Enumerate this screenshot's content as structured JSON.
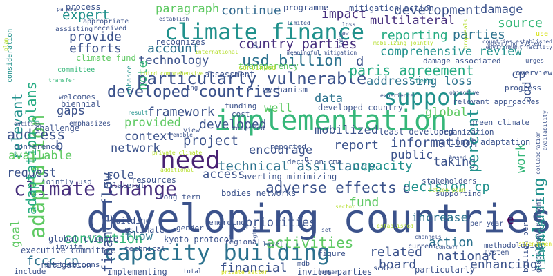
{
  "palette": {
    "navy": "#3b528b",
    "indigo": "#472f7d",
    "purple": "#482173",
    "blue": "#31688e",
    "steel": "#2c728e",
    "teal": "#21918c",
    "sea": "#25ab82",
    "green": "#35b779",
    "lime": "#5ec962",
    "chartreuse": "#84d44b",
    "yellow": "#b5de2b",
    "gold": "#d8e219",
    "dark": "#440154"
  },
  "words": [
    {
      "text": "developing countries",
      "color": "#3b528b"
    },
    {
      "text": "implementation",
      "color": "#35b779"
    },
    {
      "text": "climate finance",
      "color": "#21918c"
    },
    {
      "text": "capacity building",
      "color": "#2c728e"
    },
    {
      "text": "climate change",
      "color": "#472f7d"
    },
    {
      "text": "support",
      "color": "#21918c"
    },
    {
      "text": "need",
      "color": "#482173"
    },
    {
      "text": "particularly vulnerable",
      "color": "#3b528b"
    },
    {
      "text": "developed countries",
      "color": "#3b528b"
    },
    {
      "text": "usd billion",
      "color": "#2c728e"
    },
    {
      "text": "adaptation",
      "color": "#5ec962"
    },
    {
      "text": "paris agreement",
      "color": "#25ab82"
    },
    {
      "text": "technology",
      "color": "#3b528b"
    },
    {
      "text": "country parties",
      "color": "#472f7d"
    },
    {
      "text": "adverse effects",
      "color": "#3b528b"
    },
    {
      "text": "technical assistance",
      "color": "#2c728e"
    },
    {
      "text": "decision cp",
      "color": "#21918c"
    },
    {
      "text": "comprehensive review",
      "color": "#21918c"
    },
    {
      "text": "reporting",
      "color": "#25ab82"
    },
    {
      "text": "development",
      "color": "#3b528b"
    },
    {
      "text": "multilateral",
      "color": "#472f7d"
    },
    {
      "text": "information",
      "color": "#3b528b"
    },
    {
      "text": "capacity",
      "color": "#21918c"
    },
    {
      "text": "activities",
      "color": "#5ec962"
    },
    {
      "text": "convention",
      "color": "#35b779"
    },
    {
      "text": "framework",
      "color": "#3b528b"
    },
    {
      "text": "mobilized",
      "color": "#3b528b"
    },
    {
      "text": "project",
      "color": "#3b528b"
    },
    {
      "text": "context",
      "color": "#3b528b"
    },
    {
      "text": "network",
      "color": "#3b528b"
    },
    {
      "text": "request",
      "color": "#3b528b"
    },
    {
      "text": "access",
      "color": "#3b528b"
    },
    {
      "text": "address",
      "color": "#3b528b"
    },
    {
      "text": "continue",
      "color": "#31688e"
    },
    {
      "text": "paragraph",
      "color": "#5ec962"
    },
    {
      "text": "expert",
      "color": "#21918c"
    },
    {
      "text": "provide",
      "color": "#3b528b"
    },
    {
      "text": "efforts",
      "color": "#3b528b"
    },
    {
      "text": "account",
      "color": "#2c728e"
    },
    {
      "text": "impact",
      "color": "#472f7d"
    },
    {
      "text": "parties",
      "color": "#2c728e"
    },
    {
      "text": "source",
      "color": "#35b779"
    },
    {
      "text": "damage",
      "color": "#3b528b"
    },
    {
      "text": "addressing loss",
      "color": "#2c728e"
    },
    {
      "text": "data",
      "color": "#2c728e"
    },
    {
      "text": "global",
      "color": "#5ec962"
    },
    {
      "text": "report",
      "color": "#3b528b"
    },
    {
      "text": "taking",
      "color": "#3b528b"
    },
    {
      "text": "public",
      "color": "#3b528b"
    },
    {
      "text": "work",
      "color": "#35b779"
    },
    {
      "text": "including",
      "color": "#21918c"
    },
    {
      "text": "percent",
      "color": "#21918c"
    },
    {
      "text": "cp",
      "color": "#3b528b"
    },
    {
      "text": "add",
      "color": "#3b528b"
    },
    {
      "text": "finance",
      "color": "#21918c"
    },
    {
      "text": "relevant",
      "color": "#21918c"
    },
    {
      "text": "adaptation plans",
      "color": "#25ab82"
    },
    {
      "text": "finance flow",
      "color": "#3b528b"
    },
    {
      "text": "note",
      "color": "#35b779"
    },
    {
      "text": "flow",
      "color": "#2c728e"
    },
    {
      "text": "fccc cp",
      "color": "#2c728e"
    },
    {
      "text": "action",
      "color": "#2c728e"
    },
    {
      "text": "national",
      "color": "#3b528b"
    },
    {
      "text": "related",
      "color": "#3b528b"
    },
    {
      "text": "board",
      "color": "#3b528b"
    },
    {
      "text": "enhancing",
      "color": "#3b528b"
    },
    {
      "text": "financial",
      "color": "#3b528b"
    },
    {
      "text": "increase",
      "color": "#2c728e"
    },
    {
      "text": "priorities",
      "color": "#3b528b"
    },
    {
      "text": "fund",
      "color": "#5ec962"
    },
    {
      "text": "available",
      "color": "#5ec962"
    },
    {
      "text": "provided",
      "color": "#5ec962"
    },
    {
      "text": "developed",
      "color": "#3b528b"
    },
    {
      "text": "encourage",
      "color": "#3b528b"
    },
    {
      "text": "role",
      "color": "#3b528b"
    },
    {
      "text": "gaps",
      "color": "#3b528b"
    },
    {
      "text": "goal",
      "color": "#5ec962"
    },
    {
      "text": "averting minimizing",
      "color": "#3b528b"
    },
    {
      "text": "national adaptation",
      "color": "#3b528b"
    },
    {
      "text": "least developed",
      "color": "#3b528b"
    },
    {
      "text": "transparency",
      "color": "#5ec962"
    },
    {
      "text": "mitigation action",
      "color": "#3b528b"
    },
    {
      "text": "programme",
      "color": "#3b528b"
    },
    {
      "text": "process",
      "color": "#3b528b"
    },
    {
      "text": "climate fund",
      "color": "#5ec962"
    },
    {
      "text": "recognizes",
      "color": "#3b528b"
    },
    {
      "text": "assessment",
      "color": "#3b528b"
    },
    {
      "text": "mechanism",
      "color": "#3b528b"
    },
    {
      "text": "executive committee",
      "color": "#3b528b"
    },
    {
      "text": "global climate",
      "color": "#3b528b"
    },
    {
      "text": "mitigation",
      "color": "#3b528b"
    },
    {
      "text": "implementing",
      "color": "#3b528b"
    },
    {
      "text": "invites parties",
      "color": "#3b528b"
    },
    {
      "text": "particularly",
      "color": "#3b528b"
    },
    {
      "text": "regional",
      "color": "#3b528b"
    },
    {
      "text": "kyoto protocol",
      "color": "#3b528b"
    },
    {
      "text": "estimate",
      "color": "#3b528b"
    },
    {
      "text": "resources",
      "color": "#3b528b"
    },
    {
      "text": "building",
      "color": "#3b528b"
    },
    {
      "text": "challenge",
      "color": "#3b528b"
    },
    {
      "text": "welcomes",
      "color": "#3b528b"
    },
    {
      "text": "biennial",
      "color": "#3b528b"
    },
    {
      "text": "developed country",
      "color": "#3b528b"
    },
    {
      "text": "relevant approaches",
      "color": "#3b528b"
    },
    {
      "text": "green climate",
      "color": "#3b528b"
    },
    {
      "text": "organization",
      "color": "#3b528b"
    },
    {
      "text": "damage associated",
      "color": "#3b528b"
    },
    {
      "text": "overview",
      "color": "#3b528b"
    },
    {
      "text": "progress",
      "color": "#3b528b"
    },
    {
      "text": "reported",
      "color": "#3b528b"
    },
    {
      "text": "decision cma",
      "color": "#3b528b"
    },
    {
      "text": "stakeholders",
      "color": "#3b528b"
    },
    {
      "text": "supporting",
      "color": "#3b528b"
    },
    {
      "text": "bodies networks",
      "color": "#3b528b"
    },
    {
      "text": "emerging",
      "color": "#3b528b"
    },
    {
      "text": "gender",
      "color": "#3b528b"
    },
    {
      "text": "long term",
      "color": "#3b528b"
    },
    {
      "text": "bilateral",
      "color": "#3b528b"
    },
    {
      "text": "jointly usd",
      "color": "#3b528b"
    },
    {
      "text": "conference",
      "color": "#3b528b"
    },
    {
      "text": "entities",
      "color": "#3b528b"
    },
    {
      "text": "emphasizes",
      "color": "#3b528b"
    },
    {
      "text": "view",
      "color": "#3b528b"
    },
    {
      "text": "funding",
      "color": "#3b528b"
    },
    {
      "text": "referred",
      "color": "#3b528b"
    },
    {
      "text": "cost",
      "color": "#3b528b"
    },
    {
      "text": "well",
      "color": "#5ec962"
    },
    {
      "text": "ing",
      "color": "#3b528b"
    },
    {
      "text": "continued",
      "color": "#b5de2b"
    },
    {
      "text": "third comprehensive",
      "color": "#b5de2b"
    },
    {
      "text": "international",
      "color": "#b5de2b"
    },
    {
      "text": "meaningful mitigation",
      "color": "#3b528b"
    },
    {
      "text": "mobilizing jointly",
      "color": "#b5de2b"
    },
    {
      "text": "environment facility",
      "color": "#3b528b"
    },
    {
      "text": "countries established",
      "color": "#3b528b"
    },
    {
      "text": "observing system",
      "color": "#3b528b"
    },
    {
      "text": "appropriate",
      "color": "#3b528b"
    },
    {
      "text": "received",
      "color": "#3b528b"
    },
    {
      "text": "assisting",
      "color": "#3b528b"
    },
    {
      "text": "limited",
      "color": "#3b528b"
    },
    {
      "text": "establish",
      "color": "#3b528b"
    },
    {
      "text": "committee",
      "color": "#35b779"
    },
    {
      "text": "transfer",
      "color": "#35b779"
    },
    {
      "text": "enhance",
      "color": "#21918c"
    },
    {
      "text": "consideration",
      "color": "#21918c"
    },
    {
      "text": "plan",
      "color": "#b5de2b"
    },
    {
      "text": "proposals",
      "color": "#b5de2b"
    },
    {
      "text": "use",
      "color": "#d8e219"
    },
    {
      "text": "urges",
      "color": "#3b528b"
    },
    {
      "text": "objective",
      "color": "#3b528b"
    },
    {
      "text": "term",
      "color": "#21918c"
    },
    {
      "text": "experience",
      "color": "#3b528b"
    },
    {
      "text": "figure",
      "color": "#3b528b"
    },
    {
      "text": "mdb",
      "color": "#3b528b"
    },
    {
      "text": "level",
      "color": "#3b528b"
    },
    {
      "text": "current",
      "color": "#3b528b"
    },
    {
      "text": "concern",
      "color": "#3b528b"
    },
    {
      "text": "scale",
      "color": "#3b528b"
    },
    {
      "text": "total",
      "color": "#3b528b"
    },
    {
      "text": "include",
      "color": "#3b528b"
    },
    {
      "text": "invite",
      "color": "#3b528b"
    },
    {
      "text": "institutions",
      "color": "#3b528b"
    },
    {
      "text": "technical",
      "color": "#3b528b"
    },
    {
      "text": "system",
      "color": "#3b528b"
    },
    {
      "text": "methodologies",
      "color": "#3b528b"
    },
    {
      "text": "channels",
      "color": "#3b528b"
    },
    {
      "text": "billion per",
      "color": "#3b528b"
    },
    {
      "text": "global environment",
      "color": "#3b528b"
    },
    {
      "text": "per year",
      "color": "#3b528b"
    },
    {
      "text": "action plan",
      "color": "#b5de2b"
    },
    {
      "text": "established",
      "color": "#b5de2b"
    },
    {
      "text": "sector",
      "color": "#b5de2b"
    },
    {
      "text": "set",
      "color": "#3b528b"
    },
    {
      "text": "based",
      "color": "#3b528b"
    },
    {
      "text": "availability",
      "color": "#3b528b"
    },
    {
      "text": "collaboration",
      "color": "#3b528b"
    },
    {
      "text": "strengthen",
      "color": "#d8e219"
    },
    {
      "text": "private climate",
      "color": "#b5de2b"
    },
    {
      "text": "additional",
      "color": "#b5de2b"
    },
    {
      "text": "enable",
      "color": "#3b528b"
    },
    {
      "text": "result",
      "color": "#21918c"
    },
    {
      "text": "region",
      "color": "#3b528b"
    },
    {
      "text": "new",
      "color": "#3b528b"
    },
    {
      "text": "take",
      "color": "#3b528b"
    },
    {
      "text": "loss",
      "color": "#3b528b"
    },
    {
      "text": "n",
      "color": "#3b528b"
    },
    {
      "text": "b",
      "color": "#3b528b"
    },
    {
      "text": "c",
      "color": "#3b528b"
    },
    {
      "text": "d",
      "color": "#3b528b"
    },
    {
      "text": "e",
      "color": "#440154"
    },
    {
      "text": "s",
      "color": "#3b528b"
    },
    {
      "text": "t",
      "color": "#3b528b"
    },
    {
      "text": "pa cma",
      "color": "#3b528b"
    },
    {
      "text": "number",
      "color": "#3b528b"
    },
    {
      "text": "private sector",
      "color": "#d8e219"
    }
  ]
}
